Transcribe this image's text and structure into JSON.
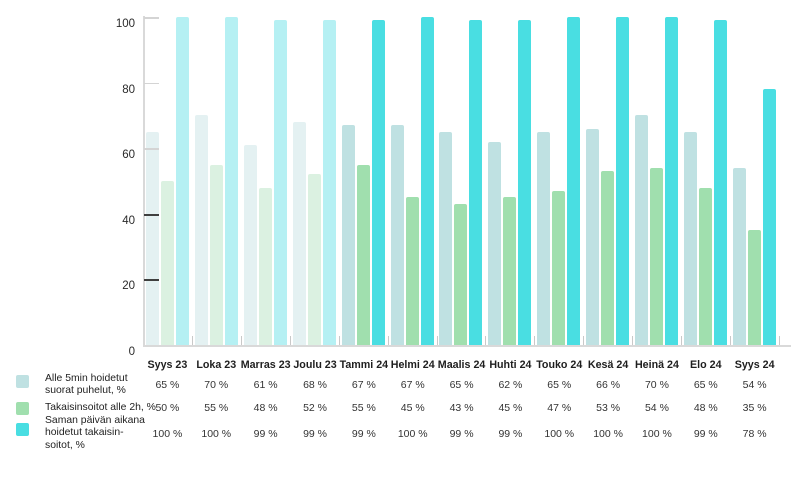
{
  "chart_data": {
    "type": "bar",
    "title": "",
    "xlabel": "",
    "ylabel": "",
    "ylim": [
      0,
      100
    ],
    "yticks": [
      0,
      20,
      40,
      60,
      80,
      100
    ],
    "grid": false,
    "legend_position": "bottom-left",
    "value_suffix": " %",
    "muted_category_count": 4,
    "categories": [
      "Syys 23",
      "Loka 23",
      "Marras 23",
      "Joulu 23",
      "Tammi 24",
      "Helmi 24",
      "Maalis 24",
      "Huhti 24",
      "Touko 24",
      "Kesä 24",
      "Heinä 24",
      "Elo 24",
      "Syys 24"
    ],
    "series": [
      {
        "name": "Alle 5min hoidetut suorat puhelut, %",
        "values": [
          65,
          70,
          61,
          68,
          67,
          67,
          65,
          62,
          65,
          66,
          70,
          65,
          54
        ],
        "color": "#bfe1e2",
        "muted_color": "#e4f1f2"
      },
      {
        "name": "Takaisinsoitot alle 2h, %",
        "values": [
          50,
          55,
          48,
          52,
          55,
          45,
          43,
          45,
          47,
          53,
          54,
          48,
          35
        ],
        "color": "#a0dfae",
        "muted_color": "#dbf1e1"
      },
      {
        "name": "Saman päivän aikana hoidetut takaisinsoitot, %",
        "values": [
          100,
          100,
          99,
          99,
          99,
          100,
          99,
          99,
          100,
          100,
          100,
          99,
          78
        ],
        "color": "#49dee2",
        "muted_color": "#b5f0f3"
      }
    ]
  },
  "legend": {
    "items": [
      {
        "swatch_color": "#bfe1e2",
        "lines": [
          "Alle 5min hoidetut",
          "suorat puhelut, %"
        ]
      },
      {
        "swatch_color": "#a0dfae",
        "lines": [
          "Takaisinsoitot alle 2h, %"
        ]
      },
      {
        "swatch_color": "#49dee2",
        "lines": [
          "Saman päivän aikana",
          "hoidetut takaisin-",
          "soitot, %"
        ]
      }
    ]
  },
  "axis_colors": {
    "line": "#d9d9d9",
    "tick_light": "#d4d4d4",
    "tick_dark": "#3f3f3f",
    "group_tick": "#c9c9c9"
  }
}
